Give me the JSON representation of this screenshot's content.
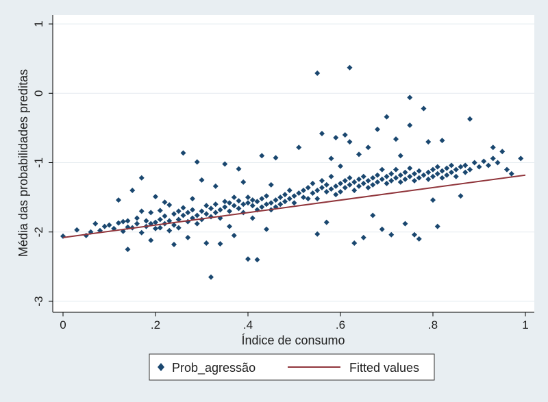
{
  "colors": {
    "page_background": "#e8eef2",
    "plot_background": "#ffffff",
    "grid": "#e6ecf0",
    "scatter": "#1a476f",
    "fitted_line": "#90353b",
    "text": "#1f1f1f"
  },
  "chart_data": {
    "type": "scatter",
    "xlabel": "Índice de consumo",
    "ylabel": "Média das probabilidades preditas",
    "xlim": [
      0,
      1
    ],
    "ylim": [
      -3,
      1
    ],
    "x_ticks": [
      {
        "value": 0,
        "label": "0"
      },
      {
        "value": 0.2,
        "label": ".2"
      },
      {
        "value": 0.4,
        "label": ".4"
      },
      {
        "value": 0.6,
        "label": ".6"
      },
      {
        "value": 0.8,
        "label": ".8"
      },
      {
        "value": 1,
        "label": "1"
      }
    ],
    "y_ticks": [
      {
        "value": 1,
        "label": "1"
      },
      {
        "value": 0,
        "label": "0"
      },
      {
        "value": -1,
        "label": "-1"
      },
      {
        "value": -2,
        "label": "-2"
      },
      {
        "value": -3,
        "label": "-3"
      }
    ],
    "grid": true,
    "legend_position": "bottom",
    "series": [
      {
        "name": "Prob_agressão",
        "kind": "scatter",
        "marker": "diamond",
        "points": [
          [
            0.0,
            -2.06
          ],
          [
            0.03,
            -1.97
          ],
          [
            0.05,
            -2.05
          ],
          [
            0.06,
            -2.0
          ],
          [
            0.07,
            -1.88
          ],
          [
            0.08,
            -1.98
          ],
          [
            0.09,
            -1.92
          ],
          [
            0.1,
            -1.9
          ],
          [
            0.11,
            -1.95
          ],
          [
            0.12,
            -1.87
          ],
          [
            0.12,
            -1.54
          ],
          [
            0.13,
            -1.99
          ],
          [
            0.13,
            -1.85
          ],
          [
            0.14,
            -1.93
          ],
          [
            0.14,
            -1.84
          ],
          [
            0.14,
            -2.25
          ],
          [
            0.15,
            -1.4
          ],
          [
            0.15,
            -1.94
          ],
          [
            0.16,
            -1.88
          ],
          [
            0.16,
            -1.8
          ],
          [
            0.17,
            -1.7
          ],
          [
            0.17,
            -2.01
          ],
          [
            0.17,
            -1.22
          ],
          [
            0.18,
            -1.92
          ],
          [
            0.18,
            -1.84
          ],
          [
            0.19,
            -1.88
          ],
          [
            0.19,
            -1.72
          ],
          [
            0.19,
            -2.12
          ],
          [
            0.2,
            -1.95
          ],
          [
            0.2,
            -1.86
          ],
          [
            0.2,
            -1.49
          ],
          [
            0.21,
            -1.82
          ],
          [
            0.21,
            -1.94
          ],
          [
            0.21,
            -1.69
          ],
          [
            0.22,
            -1.77
          ],
          [
            0.22,
            -1.88
          ],
          [
            0.22,
            -1.57
          ],
          [
            0.23,
            -1.84
          ],
          [
            0.23,
            -1.98
          ],
          [
            0.23,
            -1.61
          ],
          [
            0.24,
            -1.74
          ],
          [
            0.24,
            -1.9
          ],
          [
            0.24,
            -2.18
          ],
          [
            0.25,
            -1.82
          ],
          [
            0.25,
            -1.7
          ],
          [
            0.25,
            -1.94
          ],
          [
            0.26,
            -1.76
          ],
          [
            0.26,
            -0.86
          ],
          [
            0.26,
            -1.65
          ],
          [
            0.27,
            -1.85
          ],
          [
            0.27,
            -1.72
          ],
          [
            0.27,
            -2.08
          ],
          [
            0.28,
            -1.8
          ],
          [
            0.28,
            -1.68
          ],
          [
            0.28,
            -1.52
          ],
          [
            0.29,
            -1.76
          ],
          [
            0.29,
            -1.88
          ],
          [
            0.29,
            -0.99
          ],
          [
            0.3,
            -1.7
          ],
          [
            0.3,
            -1.82
          ],
          [
            0.3,
            -1.25
          ],
          [
            0.31,
            -1.74
          ],
          [
            0.31,
            -1.62
          ],
          [
            0.31,
            -2.16
          ],
          [
            0.32,
            -1.78
          ],
          [
            0.32,
            -1.66
          ],
          [
            0.32,
            -2.65
          ],
          [
            0.33,
            -1.72
          ],
          [
            0.33,
            -1.6
          ],
          [
            0.33,
            -1.34
          ],
          [
            0.34,
            -1.68
          ],
          [
            0.34,
            -1.8
          ],
          [
            0.34,
            -2.17
          ],
          [
            0.35,
            -1.64
          ],
          [
            0.35,
            -1.56
          ],
          [
            0.35,
            -1.02
          ],
          [
            0.36,
            -1.7
          ],
          [
            0.36,
            -1.58
          ],
          [
            0.36,
            -1.92
          ],
          [
            0.37,
            -1.62
          ],
          [
            0.37,
            -1.5
          ],
          [
            0.37,
            -2.05
          ],
          [
            0.38,
            -1.66
          ],
          [
            0.38,
            -1.55
          ],
          [
            0.38,
            -1.09
          ],
          [
            0.39,
            -1.6
          ],
          [
            0.39,
            -1.72
          ],
          [
            0.39,
            -1.28
          ],
          [
            0.4,
            -1.58
          ],
          [
            0.4,
            -1.5
          ],
          [
            0.4,
            -2.39
          ],
          [
            0.41,
            -1.62
          ],
          [
            0.41,
            -1.54
          ],
          [
            0.41,
            -1.8
          ],
          [
            0.42,
            -1.56
          ],
          [
            0.42,
            -1.68
          ],
          [
            0.42,
            -2.4
          ],
          [
            0.43,
            -1.52
          ],
          [
            0.43,
            -1.64
          ],
          [
            0.43,
            -0.9
          ],
          [
            0.44,
            -1.6
          ],
          [
            0.44,
            -1.48
          ],
          [
            0.44,
            -1.96
          ],
          [
            0.45,
            -1.58
          ],
          [
            0.45,
            -1.68
          ],
          [
            0.45,
            -1.32
          ],
          [
            0.46,
            -1.54
          ],
          [
            0.46,
            -1.64
          ],
          [
            0.46,
            -0.93
          ],
          [
            0.47,
            -1.5
          ],
          [
            0.47,
            -1.6
          ],
          [
            0.48,
            -1.46
          ],
          [
            0.48,
            -1.56
          ],
          [
            0.49,
            -1.52
          ],
          [
            0.49,
            -1.4
          ],
          [
            0.5,
            -1.48
          ],
          [
            0.5,
            -1.58
          ],
          [
            0.51,
            -1.44
          ],
          [
            0.51,
            -0.78
          ],
          [
            0.52,
            -1.5
          ],
          [
            0.52,
            -1.4
          ],
          [
            0.53,
            -1.36
          ],
          [
            0.53,
            -1.52
          ],
          [
            0.54,
            -1.44
          ],
          [
            0.54,
            -1.3
          ],
          [
            0.55,
            -1.4
          ],
          [
            0.55,
            -1.52
          ],
          [
            0.55,
            0.29
          ],
          [
            0.55,
            -2.03
          ],
          [
            0.56,
            -1.36
          ],
          [
            0.56,
            -1.26
          ],
          [
            0.56,
            -0.58
          ],
          [
            0.57,
            -1.42
          ],
          [
            0.57,
            -1.32
          ],
          [
            0.57,
            -1.86
          ],
          [
            0.58,
            -1.38
          ],
          [
            0.58,
            -1.2
          ],
          [
            0.58,
            -0.94
          ],
          [
            0.59,
            -1.34
          ],
          [
            0.59,
            -1.46
          ],
          [
            0.59,
            -0.64
          ],
          [
            0.6,
            -1.3
          ],
          [
            0.6,
            -1.42
          ],
          [
            0.6,
            -1.05
          ],
          [
            0.61,
            -1.36
          ],
          [
            0.61,
            -1.26
          ],
          [
            0.61,
            -0.6
          ],
          [
            0.62,
            0.37
          ],
          [
            0.62,
            -1.32
          ],
          [
            0.62,
            -1.22
          ],
          [
            0.62,
            -0.7
          ],
          [
            0.63,
            -1.28
          ],
          [
            0.63,
            -1.4
          ],
          [
            0.63,
            -2.16
          ],
          [
            0.64,
            -1.24
          ],
          [
            0.64,
            -1.34
          ],
          [
            0.64,
            -0.88
          ],
          [
            0.65,
            -1.3
          ],
          [
            0.65,
            -1.2
          ],
          [
            0.65,
            -2.08
          ],
          [
            0.66,
            -1.26
          ],
          [
            0.66,
            -1.36
          ],
          [
            0.66,
            -0.78
          ],
          [
            0.67,
            -1.22
          ],
          [
            0.67,
            -1.32
          ],
          [
            0.67,
            -1.76
          ],
          [
            0.68,
            -1.18
          ],
          [
            0.68,
            -1.28
          ],
          [
            0.68,
            -0.52
          ],
          [
            0.69,
            -1.24
          ],
          [
            0.69,
            -1.1
          ],
          [
            0.69,
            -1.96
          ],
          [
            0.7,
            -1.2
          ],
          [
            0.7,
            -1.3
          ],
          [
            0.7,
            -0.34
          ],
          [
            0.71,
            -1.16
          ],
          [
            0.71,
            -1.26
          ],
          [
            0.71,
            -2.04
          ],
          [
            0.72,
            -1.22
          ],
          [
            0.72,
            -1.1
          ],
          [
            0.72,
            -0.66
          ],
          [
            0.73,
            -1.18
          ],
          [
            0.73,
            -1.28
          ],
          [
            0.73,
            -0.9
          ],
          [
            0.74,
            -1.14
          ],
          [
            0.74,
            -1.24
          ],
          [
            0.74,
            -1.88
          ],
          [
            0.75,
            -0.06
          ],
          [
            0.75,
            -1.2
          ],
          [
            0.75,
            -1.08
          ],
          [
            0.75,
            -0.46
          ],
          [
            0.76,
            -1.16
          ],
          [
            0.76,
            -1.26
          ],
          [
            0.76,
            -2.04
          ],
          [
            0.77,
            -1.12
          ],
          [
            0.77,
            -1.22
          ],
          [
            0.77,
            -2.1
          ],
          [
            0.78,
            -1.18
          ],
          [
            0.78,
            -0.22
          ],
          [
            0.79,
            -1.14
          ],
          [
            0.79,
            -1.24
          ],
          [
            0.79,
            -0.7
          ],
          [
            0.8,
            -1.1
          ],
          [
            0.8,
            -1.2
          ],
          [
            0.8,
            -1.54
          ],
          [
            0.81,
            -1.16
          ],
          [
            0.81,
            -1.06
          ],
          [
            0.81,
            -1.92
          ],
          [
            0.82,
            -1.12
          ],
          [
            0.82,
            -1.22
          ],
          [
            0.82,
            -0.68
          ],
          [
            0.83,
            -1.08
          ],
          [
            0.83,
            -1.18
          ],
          [
            0.84,
            -1.14
          ],
          [
            0.84,
            -1.04
          ],
          [
            0.85,
            -1.1
          ],
          [
            0.85,
            -1.2
          ],
          [
            0.86,
            -1.06
          ],
          [
            0.86,
            -1.48
          ],
          [
            0.87,
            -1.14
          ],
          [
            0.87,
            -1.04
          ],
          [
            0.88,
            -0.37
          ],
          [
            0.88,
            -1.1
          ],
          [
            0.89,
            -1.0
          ],
          [
            0.9,
            -1.06
          ],
          [
            0.91,
            -0.98
          ],
          [
            0.92,
            -1.04
          ],
          [
            0.93,
            -0.78
          ],
          [
            0.93,
            -0.94
          ],
          [
            0.94,
            -1.0
          ],
          [
            0.95,
            -0.84
          ],
          [
            0.96,
            -1.1
          ],
          [
            0.97,
            -1.16
          ],
          [
            0.99,
            -0.94
          ]
        ]
      },
      {
        "name": "Fitted values",
        "kind": "line",
        "points": [
          [
            0,
            -2.08
          ],
          [
            1,
            -1.18
          ]
        ]
      }
    ]
  }
}
